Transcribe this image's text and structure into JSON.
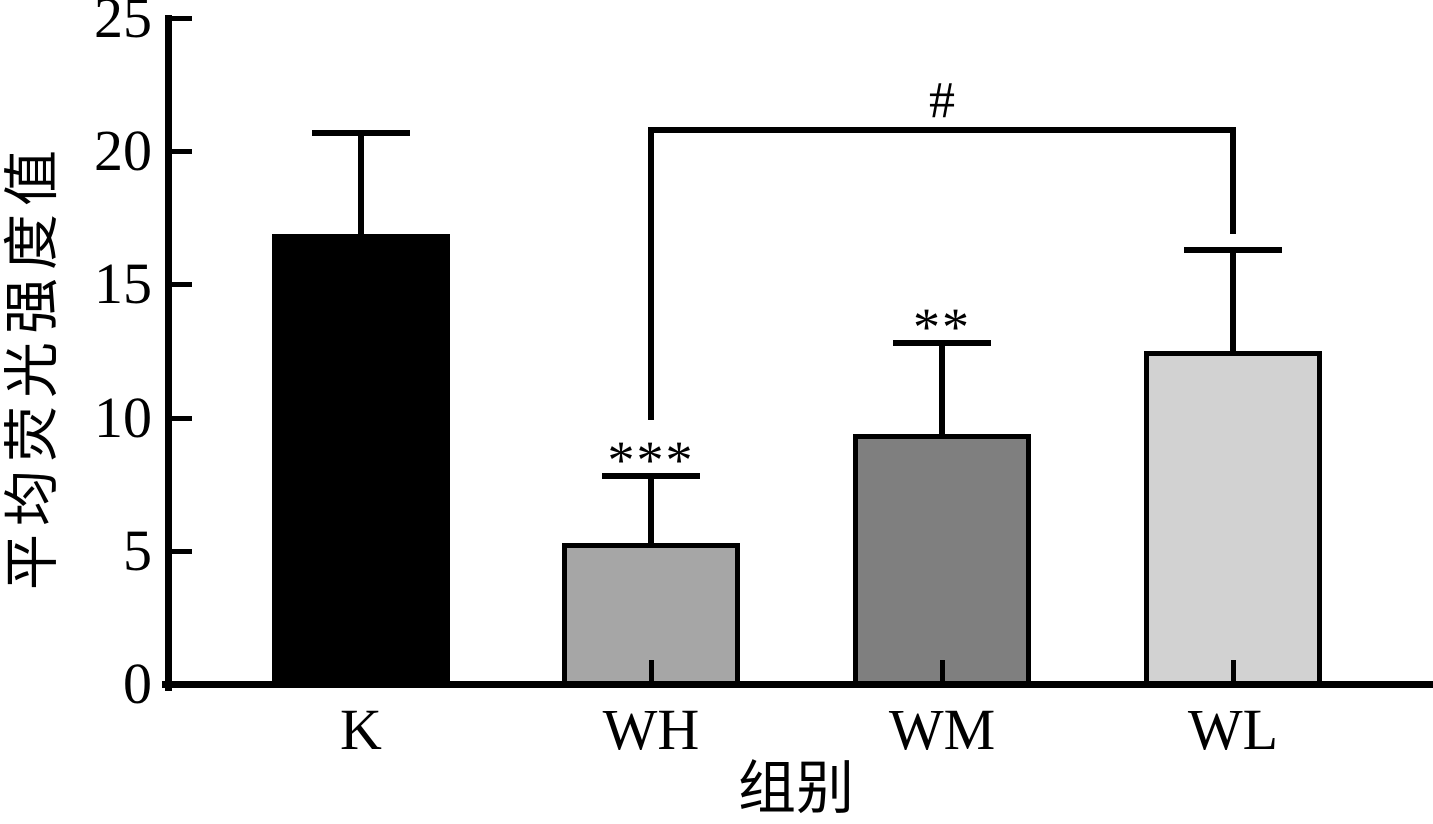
{
  "figure": {
    "background": "#ffffff"
  },
  "chart_data": {
    "type": "bar",
    "title": "",
    "xlabel": "组别",
    "ylabel": "平均荧光强度值",
    "categories": [
      "K",
      "WH",
      "WM",
      "WL"
    ],
    "values": [
      16.9,
      5.3,
      9.4,
      12.5
    ],
    "error_plus": [
      3.8,
      2.5,
      3.4,
      3.8
    ],
    "bar_colors": [
      "#000000",
      "#a6a6a6",
      "#7f7f7f",
      "#d2d2d2"
    ],
    "bar_border_color": "#000000",
    "ylim": [
      0,
      25
    ],
    "yticks": [
      0,
      5,
      10,
      15,
      20,
      25
    ],
    "grid": false,
    "legend": "none",
    "significance_marks": [
      {
        "category": "WH",
        "label": "***"
      },
      {
        "category": "WM",
        "label": "**"
      }
    ],
    "comparison_bracket": {
      "from": "WH",
      "to": "WL",
      "label": "#",
      "y_value": 20.8,
      "from_leg_bottom_value": 9.9,
      "to_leg_bottom_value": 16.9
    }
  }
}
